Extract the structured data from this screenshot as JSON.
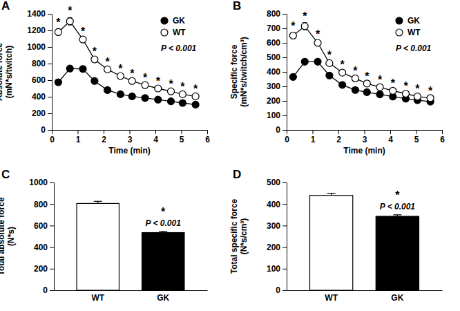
{
  "chart_data": [
    {
      "type": "line",
      "panel_label": "A",
      "x_label": "Time (min)",
      "y_label": [
        "Absolute force",
        "(mN*s/twitch)"
      ],
      "x": [
        0.25,
        0.7,
        1.2,
        1.65,
        2.15,
        2.65,
        3.1,
        3.6,
        4.1,
        4.6,
        5.05,
        5.55
      ],
      "xlim": [
        0,
        6
      ],
      "xticks": [
        0,
        1,
        2,
        3,
        4,
        5,
        6
      ],
      "ylim": [
        0,
        1400
      ],
      "yticks": [
        0,
        200,
        400,
        600,
        800,
        1000,
        1200,
        1400
      ],
      "legend": "top-right",
      "annotations": [
        "P < 0.001"
      ],
      "significance": [
        "*",
        "*",
        "*",
        "*",
        "*",
        "*",
        "*",
        "*",
        "*",
        "*",
        "*",
        "*"
      ],
      "series": [
        {
          "name": "GK",
          "color": "#000000",
          "marker": "circle",
          "values": [
            575,
            740,
            735,
            590,
            480,
            430,
            405,
            385,
            365,
            345,
            325,
            305
          ],
          "errors": [
            12,
            15,
            15,
            12,
            10,
            10,
            8,
            8,
            8,
            8,
            8,
            8
          ]
        },
        {
          "name": "WT",
          "color": "#ffffff",
          "marker": "circle",
          "values": [
            1180,
            1310,
            1090,
            850,
            730,
            650,
            590,
            540,
            500,
            465,
            430,
            405
          ],
          "errors": [
            40,
            45,
            20,
            15,
            12,
            12,
            10,
            10,
            10,
            10,
            10,
            10
          ]
        }
      ]
    },
    {
      "type": "line",
      "panel_label": "B",
      "x_label": "Time (min)",
      "y_label": [
        "Specific force",
        "(mN*s/twitch/cm³)"
      ],
      "x": [
        0.25,
        0.7,
        1.2,
        1.65,
        2.15,
        2.65,
        3.1,
        3.6,
        4.1,
        4.6,
        5.05,
        5.55
      ],
      "xlim": [
        0,
        6
      ],
      "xticks": [
        0,
        1,
        2,
        3,
        4,
        5,
        6
      ],
      "ylim": [
        0,
        800
      ],
      "yticks": [
        0,
        100,
        200,
        300,
        400,
        500,
        600,
        700,
        800
      ],
      "legend": "top-right",
      "annotations": [
        "P < 0.001"
      ],
      "significance": [
        "*",
        "*",
        "*",
        "*",
        "*",
        "*",
        "*",
        "*",
        "*",
        "*",
        "*",
        "*"
      ],
      "series": [
        {
          "name": "GK",
          "color": "#000000",
          "marker": "circle",
          "values": [
            365,
            470,
            470,
            375,
            310,
            275,
            260,
            245,
            230,
            215,
            205,
            195
          ],
          "errors": [
            8,
            10,
            10,
            8,
            6,
            6,
            5,
            5,
            5,
            5,
            5,
            5
          ]
        },
        {
          "name": "WT",
          "color": "#ffffff",
          "marker": "circle",
          "values": [
            650,
            715,
            600,
            460,
            395,
            355,
            320,
            295,
            270,
            250,
            230,
            220
          ],
          "errors": [
            22,
            25,
            12,
            10,
            8,
            8,
            6,
            6,
            6,
            6,
            6,
            6
          ]
        }
      ]
    },
    {
      "type": "bar",
      "panel_label": "C",
      "y_label": [
        "Total absolute force",
        "(N*s)"
      ],
      "categories": [
        "WT",
        "GK"
      ],
      "values": [
        805,
        535
      ],
      "errors": [
        20,
        12
      ],
      "colors": [
        "#ffffff",
        "#000000"
      ],
      "ylim": [
        0,
        1000
      ],
      "yticks": [
        0,
        200,
        400,
        600,
        800,
        1000
      ],
      "significance": [
        null,
        "*"
      ],
      "annotations": [
        "P < 0.001"
      ]
    },
    {
      "type": "bar",
      "panel_label": "D",
      "y_label": [
        "Total specific force",
        "(N*s/cm³)"
      ],
      "categories": [
        "WT",
        "GK"
      ],
      "values": [
        440,
        343
      ],
      "errors": [
        10,
        7
      ],
      "colors": [
        "#ffffff",
        "#000000"
      ],
      "ylim": [
        0,
        500
      ],
      "yticks": [
        0,
        100,
        200,
        300,
        400,
        500
      ],
      "significance": [
        null,
        "*"
      ],
      "annotations": [
        "P < 0.001"
      ]
    }
  ]
}
